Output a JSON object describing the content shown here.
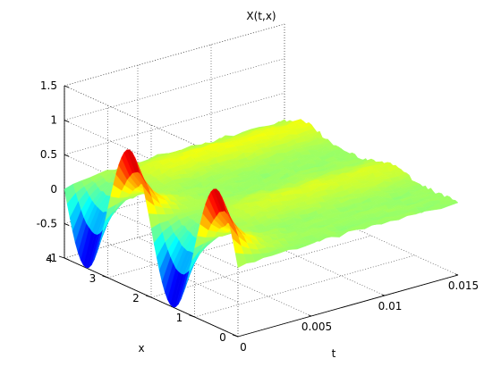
{
  "chart_data": {
    "type": "surface",
    "title": "X(t,x)",
    "xlabel": "t",
    "ylabel": "x",
    "zlabel": "",
    "t_range": [
      0,
      0.015
    ],
    "x_range": [
      0,
      4
    ],
    "zlim": [
      -1,
      1.5
    ],
    "t_ticks": [
      "0",
      "0.005",
      "0.01",
      "0.015"
    ],
    "t_tick_values": [
      0,
      0.005,
      0.01,
      0.015
    ],
    "x_ticks": [
      "0",
      "1",
      "2",
      "3",
      "4"
    ],
    "x_tick_values": [
      0,
      1,
      2,
      3,
      4
    ],
    "z_ticks": [
      "-1",
      "-0.5",
      "0",
      "0.5",
      "1",
      "1.5"
    ],
    "z_tick_values": [
      -1,
      -0.5,
      0,
      0.5,
      1,
      1.5
    ],
    "grid": true,
    "grid_style": "dotted",
    "colormap": "jet",
    "surface": {
      "initial_condition": "X(0,x) = sin(pi*x), x in [0,4]",
      "initial_amplitude": 1,
      "later_time_level": "approx. 0 to 0.2 with small noisy fluctuations",
      "later_time_structure": "two low ridges along t near x = 1.5 and x = 3.5"
    }
  },
  "colors": {
    "axes": "#000000",
    "grid": "#555555",
    "background": "#ffffff",
    "jet_low": "#00008f",
    "jet_high": "#800000"
  }
}
